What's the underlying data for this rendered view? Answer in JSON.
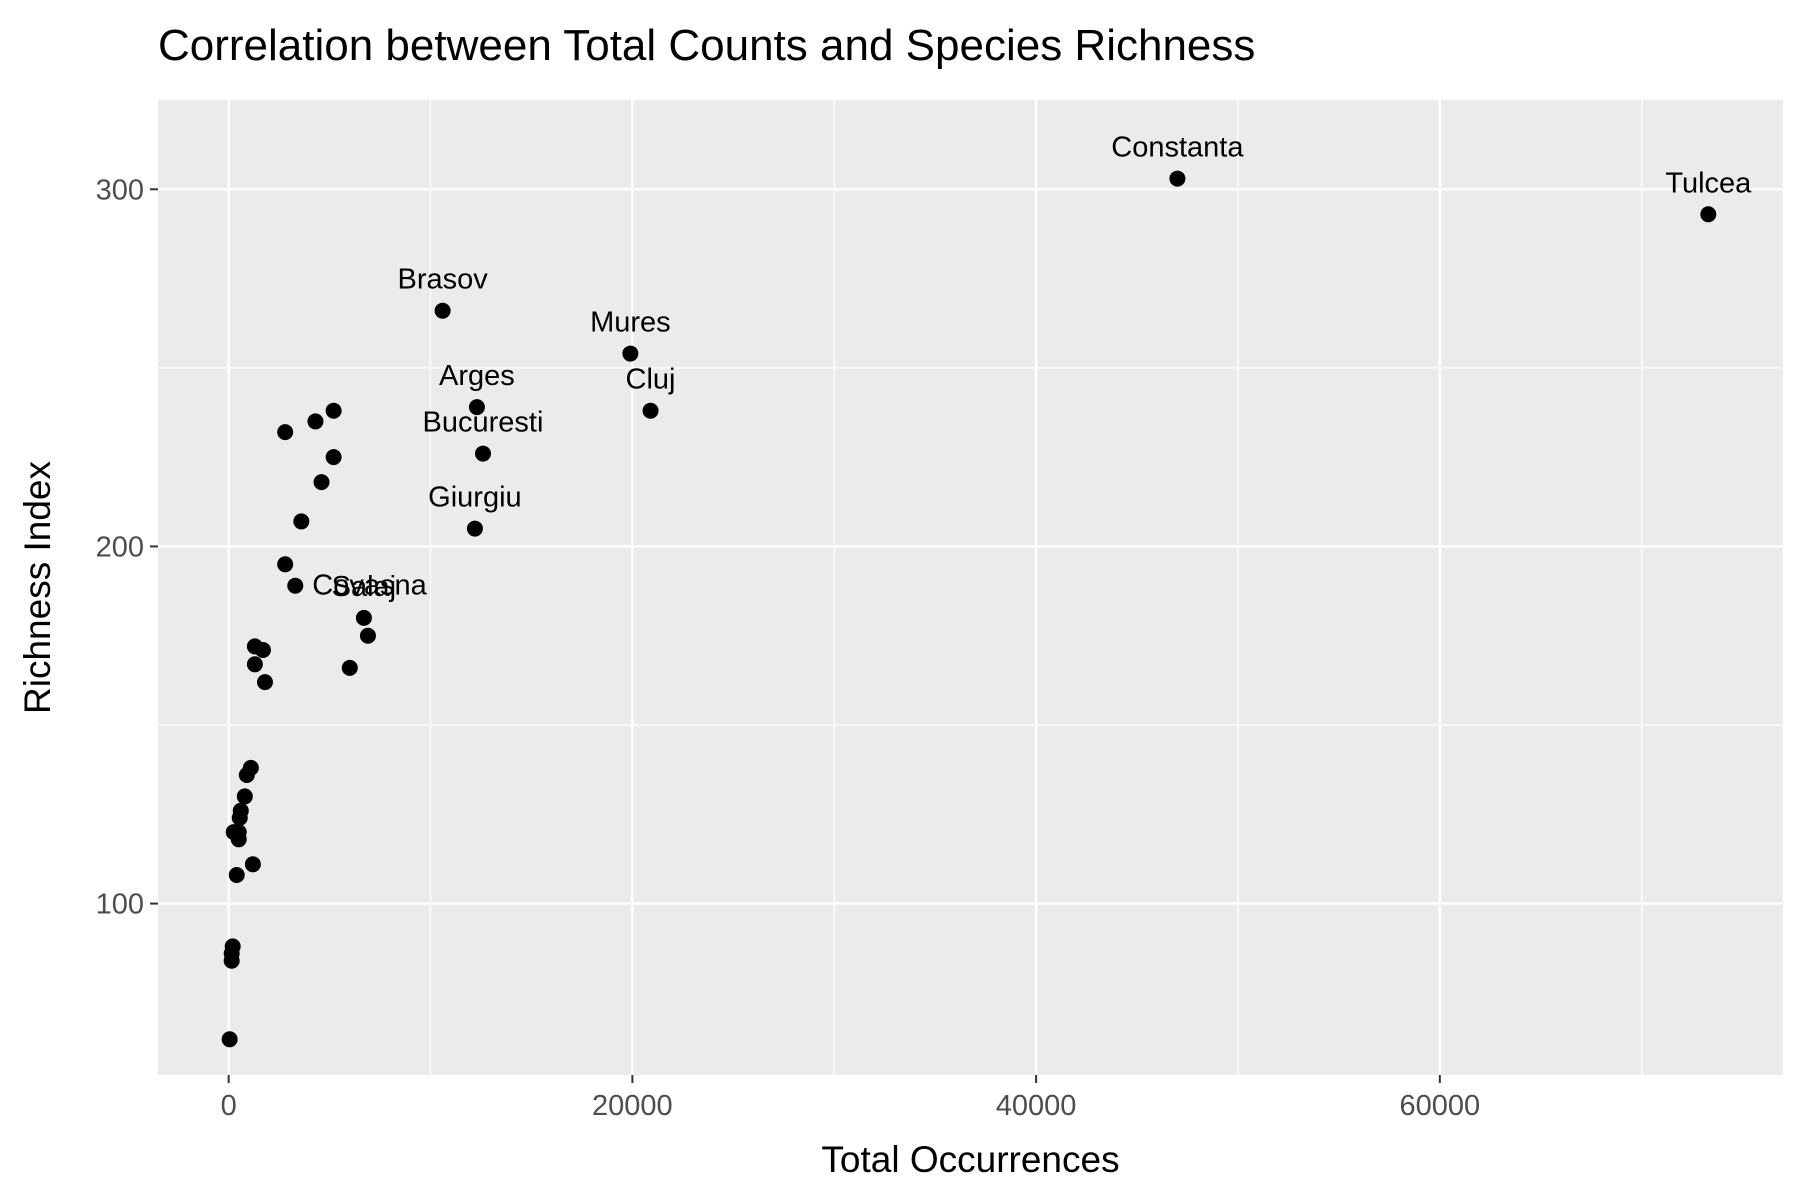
{
  "chart_data": {
    "type": "scatter",
    "title": "Correlation between Total Counts and Species Richness",
    "xlabel": "Total Occurrences",
    "ylabel": "Richness Index",
    "xlim": [
      -3500,
      77000
    ],
    "ylim": [
      52,
      325
    ],
    "x_ticks": [
      0,
      20000,
      40000,
      60000
    ],
    "x_tick_labels": [
      "0",
      "20000",
      "40000",
      "60000"
    ],
    "y_ticks": [
      100,
      200,
      300
    ],
    "y_tick_labels": [
      "100",
      "200",
      "300"
    ],
    "grid": true,
    "legend": "none",
    "colors": {
      "panel_background": "#ebebeb",
      "grid_line": "#ffffff",
      "point": "#000000",
      "tick_label": "#4d4d4d",
      "tick_mark": "#333333"
    },
    "points": [
      {
        "x": 47000,
        "y": 303,
        "label": "Constanta"
      },
      {
        "x": 73300,
        "y": 293,
        "label": "Tulcea"
      },
      {
        "x": 10600,
        "y": 266,
        "label": "Brasov"
      },
      {
        "x": 19900,
        "y": 254,
        "label": "Mures"
      },
      {
        "x": 20900,
        "y": 238,
        "label": "Cluj"
      },
      {
        "x": 12300,
        "y": 239,
        "label": "Arges"
      },
      {
        "x": 12600,
        "y": 226,
        "label": "Bucuresti"
      },
      {
        "x": 12200,
        "y": 205,
        "label": "Giurgiu"
      },
      {
        "x": 3300,
        "y": 189,
        "label": "Covasna"
      },
      {
        "x": 6700,
        "y": 180,
        "label": "Salaj"
      },
      {
        "x": 6900,
        "y": 175,
        "label": ""
      },
      {
        "x": 6000,
        "y": 166,
        "label": ""
      },
      {
        "x": 5200,
        "y": 238,
        "label": ""
      },
      {
        "x": 4300,
        "y": 235,
        "label": ""
      },
      {
        "x": 2800,
        "y": 232,
        "label": ""
      },
      {
        "x": 5200,
        "y": 225,
        "label": ""
      },
      {
        "x": 4600,
        "y": 218,
        "label": ""
      },
      {
        "x": 3600,
        "y": 207,
        "label": ""
      },
      {
        "x": 2800,
        "y": 195,
        "label": ""
      },
      {
        "x": 1300,
        "y": 172,
        "label": ""
      },
      {
        "x": 1700,
        "y": 171,
        "label": ""
      },
      {
        "x": 1300,
        "y": 167,
        "label": ""
      },
      {
        "x": 1800,
        "y": 162,
        "label": ""
      },
      {
        "x": 1100,
        "y": 138,
        "label": ""
      },
      {
        "x": 900,
        "y": 136,
        "label": ""
      },
      {
        "x": 800,
        "y": 130,
        "label": ""
      },
      {
        "x": 600,
        "y": 126,
        "label": ""
      },
      {
        "x": 550,
        "y": 124,
        "label": ""
      },
      {
        "x": 500,
        "y": 120,
        "label": ""
      },
      {
        "x": 250,
        "y": 120,
        "label": ""
      },
      {
        "x": 500,
        "y": 118,
        "label": ""
      },
      {
        "x": 1200,
        "y": 111,
        "label": ""
      },
      {
        "x": 400,
        "y": 108,
        "label": ""
      },
      {
        "x": 200,
        "y": 88,
        "label": ""
      },
      {
        "x": 150,
        "y": 86,
        "label": ""
      },
      {
        "x": 150,
        "y": 84,
        "label": ""
      },
      {
        "x": 50,
        "y": 62,
        "label": ""
      }
    ]
  }
}
